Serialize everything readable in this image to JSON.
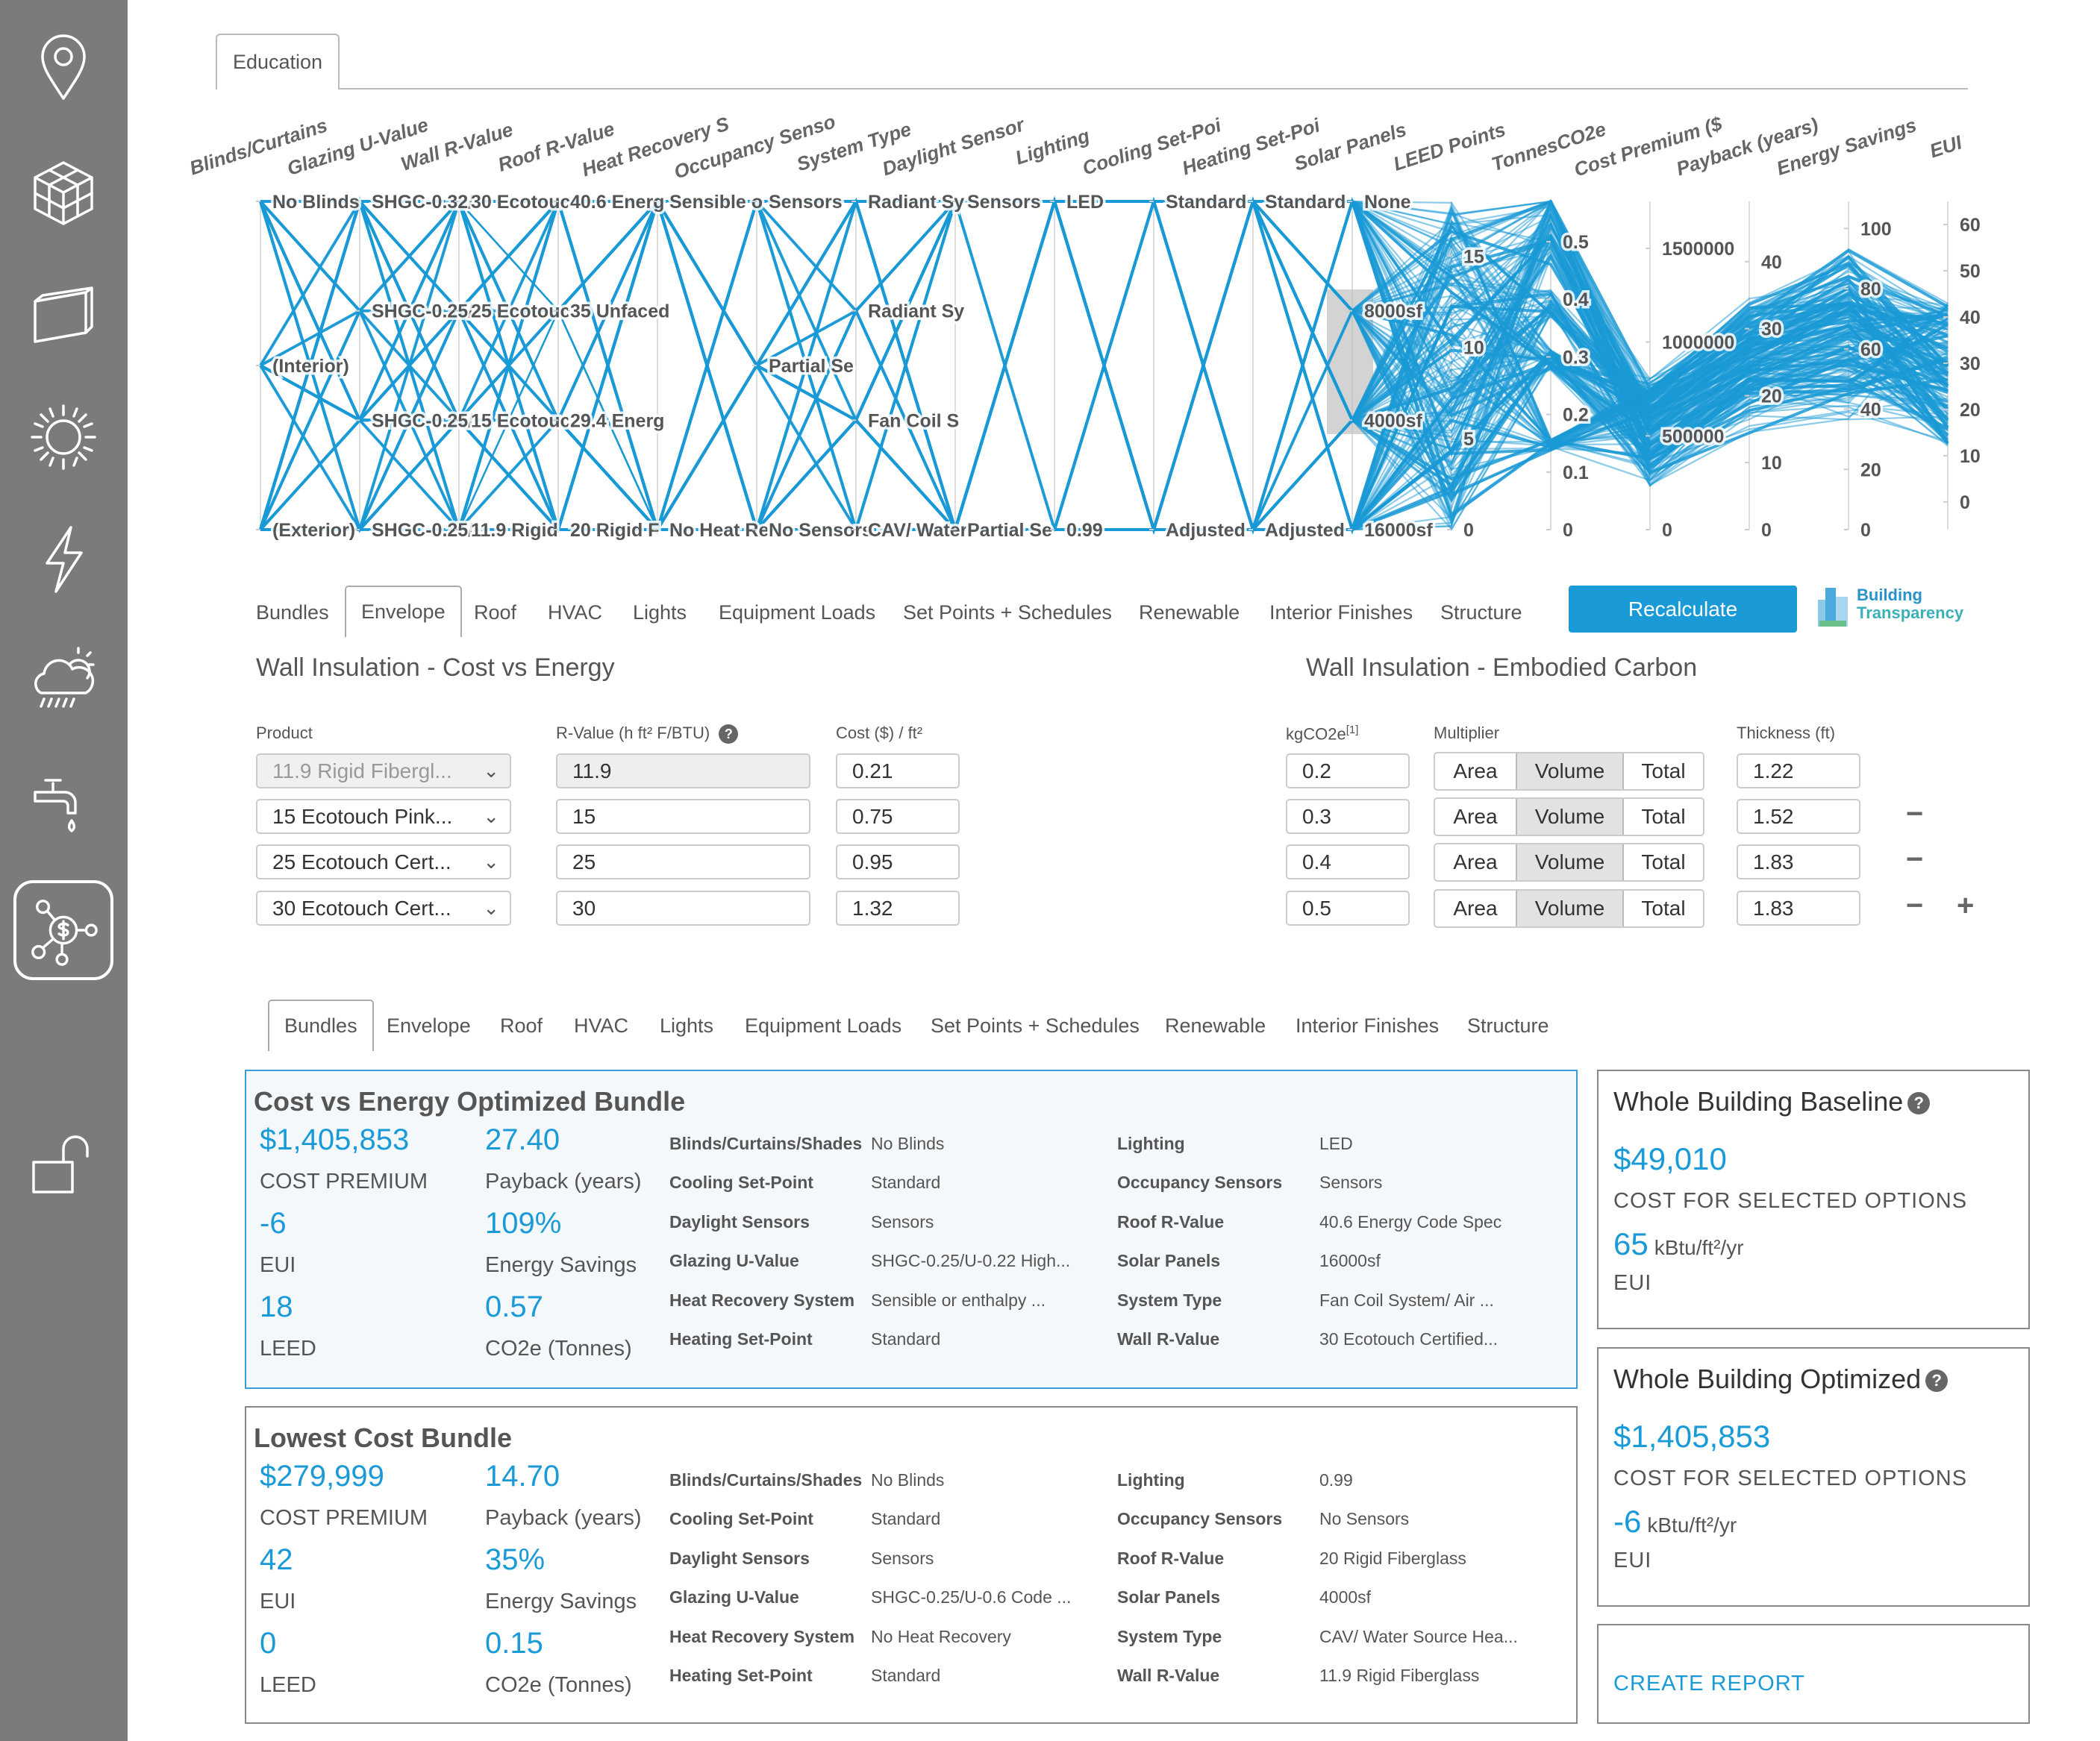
{
  "sidebar": {
    "items": [
      {
        "icon": "location-pin-icon"
      },
      {
        "icon": "cube-icon"
      },
      {
        "icon": "panel-icon"
      },
      {
        "icon": "sun-icon"
      },
      {
        "icon": "lightning-icon"
      },
      {
        "icon": "cloud-rain-sun-icon"
      },
      {
        "icon": "faucet-icon"
      },
      {
        "icon": "cost-network-icon",
        "active": true
      },
      {
        "icon": "unlock-icon"
      }
    ]
  },
  "top_tab": "Education",
  "chart_data": {
    "type": "parallel-coordinates",
    "color": "#1a9ad6",
    "axes": [
      {
        "label": "Blinds/Curtains",
        "levels": [
          "No Blinds",
          "(Interior)",
          "(Exterior)"
        ]
      },
      {
        "label": "Glazing U-Value",
        "levels": [
          "SHGC-0.32/",
          "SHGC-0.25/",
          "SHGC-0.25/",
          "SHGC-0.25/"
        ]
      },
      {
        "label": "Wall R-Value",
        "levels": [
          "30 Ecotouc",
          "25 Ecotouc",
          "15 Ecotouc",
          "11.9 Rigid"
        ]
      },
      {
        "label": "Roof R-Value",
        "levels": [
          "40.6 Energ",
          "35 Unfaced",
          "29.4 Energ",
          "20 Rigid F"
        ]
      },
      {
        "label": "Heat Recovery S",
        "levels": [
          "Sensible o",
          "No Heat Re"
        ]
      },
      {
        "label": "Occupancy Senso",
        "levels": [
          "Sensors",
          "Partial Se",
          "No Sensors"
        ]
      },
      {
        "label": "System Type",
        "levels": [
          "Radiant Sy",
          "Radiant Sy",
          "Fan Coil S",
          "CAV/ Water"
        ]
      },
      {
        "label": "Daylight Sensor",
        "levels": [
          "Sensors",
          "Partial Se"
        ]
      },
      {
        "label": "Lighting",
        "levels": [
          "LED",
          "0.99"
        ]
      },
      {
        "label": "Cooling Set-Poi",
        "levels": [
          "Standard",
          "Adjusted"
        ]
      },
      {
        "label": "Heating Set-Poi",
        "levels": [
          "Standard",
          "Adjusted"
        ]
      },
      {
        "label": "Solar Panels",
        "levels": [
          "None",
          "8000sf",
          "4000sf",
          "16000sf"
        ],
        "brush": [
          "8000sf",
          "4000sf"
        ]
      },
      {
        "label": "LEED Points",
        "range": [
          0,
          18
        ],
        "ticks": [
          0,
          5,
          10,
          15
        ]
      },
      {
        "label": "TonnesCO2e",
        "range": [
          0,
          0.57
        ],
        "ticks": [
          0,
          0.1,
          0.2,
          0.3,
          0.4,
          0.5
        ]
      },
      {
        "label": "Cost Premium ($",
        "range": [
          0,
          1750000
        ],
        "ticks": [
          0,
          500000,
          1000000,
          1500000
        ]
      },
      {
        "label": "Payback (years)",
        "range": [
          0,
          49
        ],
        "ticks": [
          0,
          10,
          20,
          30,
          40
        ]
      },
      {
        "label": "Energy Savings",
        "range": [
          0,
          109
        ],
        "ticks": [
          0,
          20,
          40,
          60,
          80,
          100
        ]
      },
      {
        "label": "EUI",
        "range": [
          -6,
          65
        ],
        "ticks": [
          0,
          10,
          20,
          30,
          40,
          50,
          60
        ]
      }
    ]
  },
  "tabs1": {
    "items": [
      "Bundles",
      "Envelope",
      "Roof",
      "HVAC",
      "Lights",
      "Equipment Loads",
      "Set Points + Schedules",
      "Renewable",
      "Interior Finishes",
      "Structure"
    ],
    "active": "Envelope"
  },
  "recalculate": "Recalculate",
  "logo": {
    "line1": "Building",
    "line2": "Transparency"
  },
  "cost_energy": {
    "title": "Wall Insulation - Cost vs Energy",
    "headers": {
      "product": "Product",
      "rvalue": "R-Value (h ft² F/BTU)",
      "cost": "Cost ($) / ft²"
    },
    "rows": [
      {
        "product": "11.9 Rigid Fibergl...",
        "rvalue": "11.9",
        "cost": "0.21"
      },
      {
        "product": "15 Ecotouch Pink...",
        "rvalue": "15",
        "cost": "0.75"
      },
      {
        "product": "25 Ecotouch Cert...",
        "rvalue": "25",
        "cost": "0.95"
      },
      {
        "product": "30 Ecotouch Cert...",
        "rvalue": "30",
        "cost": "1.32"
      }
    ]
  },
  "embodied": {
    "title": "Wall Insulation - Embodied Carbon",
    "headers": {
      "kg": "kgCO2e",
      "kg_note": "[1]",
      "multiplier": "Multiplier",
      "thickness": "Thickness (ft)"
    },
    "multiplier_options": [
      "Area",
      "Volume",
      "Total"
    ],
    "multiplier_selected": "Volume",
    "rows": [
      {
        "kg": "0.2",
        "thickness": "1.22"
      },
      {
        "kg": "0.3",
        "thickness": "1.52"
      },
      {
        "kg": "0.4",
        "thickness": "1.83"
      },
      {
        "kg": "0.5",
        "thickness": "1.83"
      }
    ],
    "remove": "−",
    "add": "+"
  },
  "tabs2": {
    "items": [
      "Bundles",
      "Envelope",
      "Roof",
      "HVAC",
      "Lights",
      "Equipment Loads",
      "Set Points + Schedules",
      "Renewable",
      "Interior Finishes",
      "Structure"
    ],
    "active": "Bundles"
  },
  "bundles": [
    {
      "title": "Cost vs Energy Optimized Bundle",
      "metrics": [
        {
          "value": "$1,405,853",
          "label": "COST PREMIUM"
        },
        {
          "value": "27.40",
          "label": "Payback (years)"
        },
        {
          "value": "-6",
          "label": "EUI"
        },
        {
          "value": "109%",
          "label": "Energy Savings"
        },
        {
          "value": "18",
          "label": "LEED"
        },
        {
          "value": "0.57",
          "label": "CO2e (Tonnes)"
        }
      ],
      "details_left": [
        {
          "k": "Blinds/Curtains/Shades",
          "v": "No Blinds"
        },
        {
          "k": "Cooling Set-Point",
          "v": "Standard"
        },
        {
          "k": "Daylight Sensors",
          "v": "Sensors"
        },
        {
          "k": "Glazing U-Value",
          "v": "SHGC-0.25/U-0.22 High..."
        },
        {
          "k": "Heat Recovery System",
          "v": "Sensible or enthalpy ..."
        },
        {
          "k": "Heating Set-Point",
          "v": "Standard"
        }
      ],
      "details_right": [
        {
          "k": "Lighting",
          "v": "LED"
        },
        {
          "k": "Occupancy Sensors",
          "v": "Sensors"
        },
        {
          "k": "Roof R-Value",
          "v": "40.6 Energy Code Spec"
        },
        {
          "k": "Solar Panels",
          "v": "16000sf"
        },
        {
          "k": "System Type",
          "v": "Fan Coil System/ Air ..."
        },
        {
          "k": "Wall R-Value",
          "v": "30 Ecotouch Certified..."
        }
      ]
    },
    {
      "title": "Lowest Cost Bundle",
      "metrics": [
        {
          "value": "$279,999",
          "label": "COST PREMIUM"
        },
        {
          "value": "14.70",
          "label": "Payback (years)"
        },
        {
          "value": "42",
          "label": "EUI"
        },
        {
          "value": "35%",
          "label": "Energy Savings"
        },
        {
          "value": "0",
          "label": "LEED"
        },
        {
          "value": "0.15",
          "label": "CO2e (Tonnes)"
        }
      ],
      "details_left": [
        {
          "k": "Blinds/Curtains/Shades",
          "v": "No Blinds"
        },
        {
          "k": "Cooling Set-Point",
          "v": "Standard"
        },
        {
          "k": "Daylight Sensors",
          "v": "Sensors"
        },
        {
          "k": "Glazing U-Value",
          "v": "SHGC-0.25/U-0.6 Code ..."
        },
        {
          "k": "Heat Recovery System",
          "v": "No Heat Recovery"
        },
        {
          "k": "Heating Set-Point",
          "v": "Standard"
        }
      ],
      "details_right": [
        {
          "k": "Lighting",
          "v": "0.99"
        },
        {
          "k": "Occupancy Sensors",
          "v": "No Sensors"
        },
        {
          "k": "Roof R-Value",
          "v": "20 Rigid Fiberglass"
        },
        {
          "k": "Solar Panels",
          "v": "4000sf"
        },
        {
          "k": "System Type",
          "v": "CAV/ Water Source Hea..."
        },
        {
          "k": "Wall R-Value",
          "v": "11.9 Rigid Fiberglass"
        }
      ]
    }
  ],
  "baseline": {
    "title": "Whole Building Baseline",
    "cost": "$49,010",
    "cost_label": "COST FOR SELECTED OPTIONS",
    "eui": "65",
    "eui_unit": "kBtu/ft²/yr",
    "eui_label": "EUI"
  },
  "optimized": {
    "title": "Whole Building Optimized",
    "cost": "$1,405,853",
    "cost_label": "COST FOR SELECTED OPTIONS",
    "eui": "-6",
    "eui_unit": "kBtu/ft²/yr",
    "eui_label": "EUI"
  },
  "create_report": "CREATE REPORT"
}
